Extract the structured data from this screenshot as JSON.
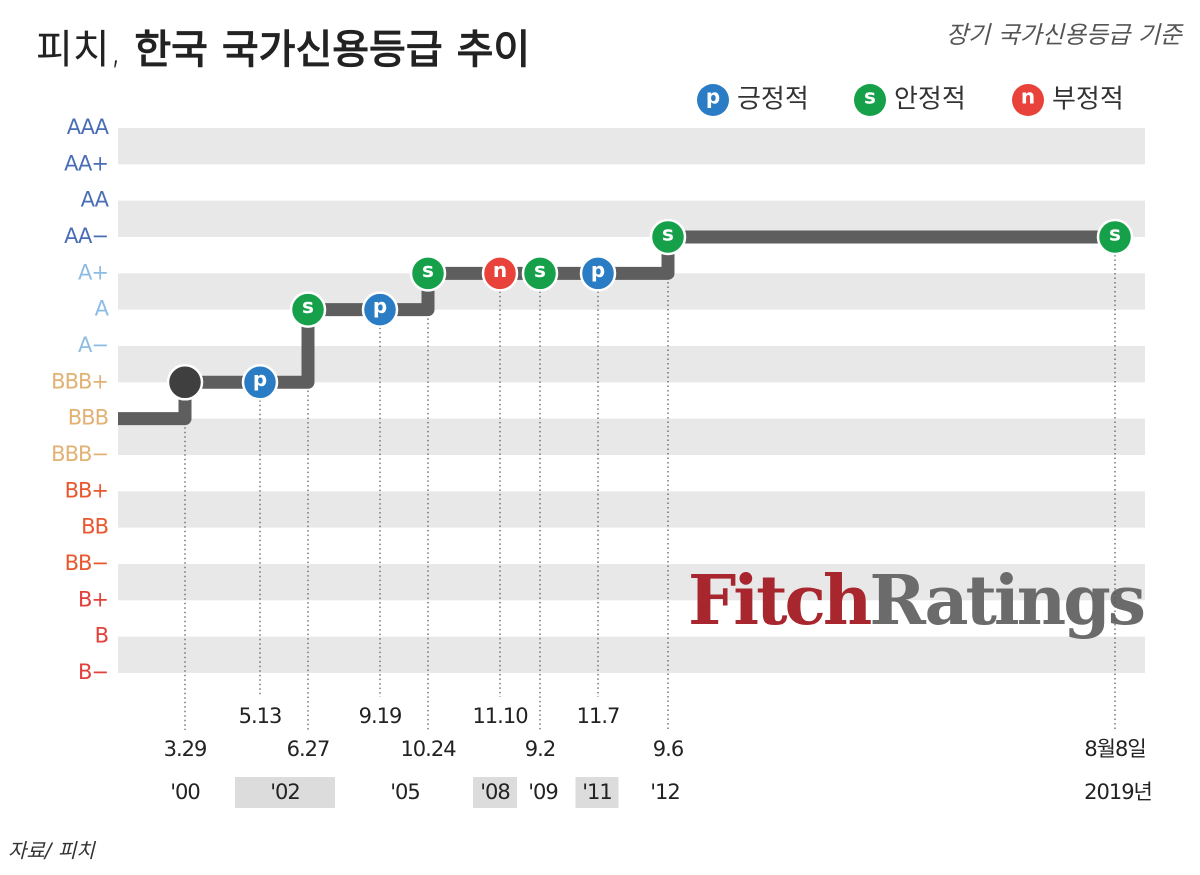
{
  "chart_data": {
    "type": "step",
    "title_prefix": "피치,",
    "title": "한국 국가신용등급 추이",
    "subtitle": "장기 국가신용등급 기준",
    "legend": [
      {
        "symbol": "p",
        "label": "긍정적",
        "color": "#2a7dc4"
      },
      {
        "symbol": "s",
        "label": "안정적",
        "color": "#16a04a"
      },
      {
        "symbol": "n",
        "label": "부정적",
        "color": "#e8423a"
      }
    ],
    "y_categories": [
      "AAA",
      "AA+",
      "AA",
      "AA−",
      "A+",
      "A",
      "A−",
      "BBB+",
      "BBB",
      "BBB−",
      "BB+",
      "BB",
      "BB−",
      "B+",
      "B",
      "B−"
    ],
    "y_category_colors": [
      "#4a6eb6",
      "#4a6eb6",
      "#4a6eb6",
      "#4a6eb6",
      "#8cbce4",
      "#8cbce4",
      "#8cbce4",
      "#e2b274",
      "#e2b274",
      "#e2b274",
      "#e8582e",
      "#e8582e",
      "#e8582e",
      "#e2403a",
      "#e2403a",
      "#e2403a"
    ],
    "grid": true,
    "categories": [
      null,
      "3.29",
      "5.13",
      "6.27",
      "9.19",
      "10.24",
      "11.10",
      "9.2",
      "11.7",
      "9.6",
      "8월8일"
    ],
    "values": [
      "BBB",
      "BBB+",
      "BBB+",
      "A",
      "A",
      "A+",
      "A+",
      "A+",
      "A+",
      "AA−",
      "AA−"
    ],
    "outlooks": [
      null,
      null,
      "p",
      "s",
      "p",
      "s",
      "n",
      "s",
      "p",
      "s",
      "s"
    ],
    "line_color": "#5e5e5e",
    "years": [
      "'00",
      "'02",
      "'05",
      "'08",
      "'09",
      "'11",
      "'12",
      "2019년"
    ],
    "year_highlight": [
      false,
      true,
      false,
      true,
      false,
      true,
      false,
      false
    ],
    "logo": [
      "Fitch",
      "Ratings"
    ],
    "source": "자료/ 피치"
  }
}
